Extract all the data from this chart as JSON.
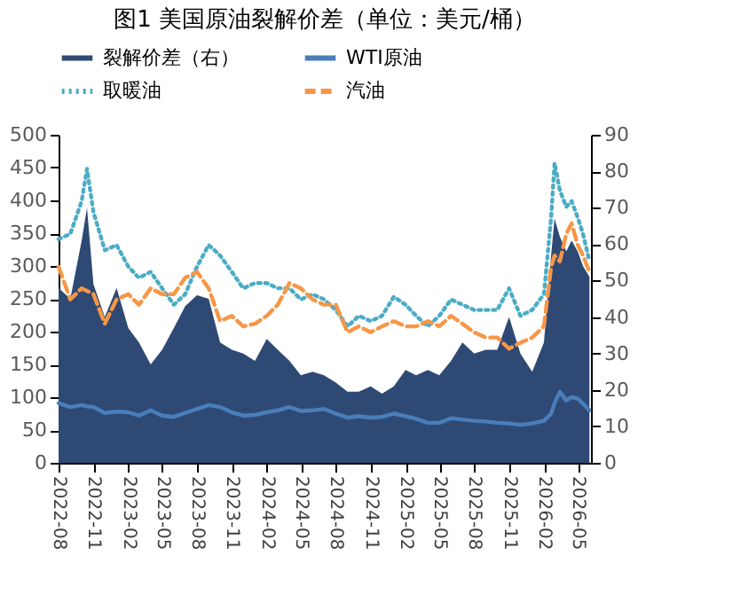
{
  "chart_data": {
    "type": "line",
    "title": "图1 美国原油裂解价差（单位：美元/桶）",
    "xlim": [
      "2022-08-01",
      "2026-06-05"
    ],
    "xticks": [
      "2022-08",
      "2022-11",
      "2023-02",
      "2023-05",
      "2023-08",
      "2023-11",
      "2024-02",
      "2024-05",
      "2024-08",
      "2024-11",
      "2025-02",
      "2025-05",
      "2025-08",
      "2025-11",
      "2026-02",
      "2026-05"
    ],
    "ylim": [
      0,
      500
    ],
    "yticks": [
      0,
      50,
      100,
      150,
      200,
      250,
      300,
      350,
      400,
      450,
      500
    ],
    "y2lim": [
      0,
      90
    ],
    "y2ticks": [
      0,
      10,
      20,
      30,
      40,
      50,
      60,
      70,
      80,
      90
    ],
    "grid": false,
    "legend": "top",
    "x": [
      "2022-08",
      "2022-09",
      "2022-10",
      "2022-10-15",
      "2022-11",
      "2022-12",
      "2023-01",
      "2023-02",
      "2023-03",
      "2023-04",
      "2023-05",
      "2023-06",
      "2023-07",
      "2023-08",
      "2023-09",
      "2023-10",
      "2023-11",
      "2023-12",
      "2024-01",
      "2024-02",
      "2024-03",
      "2024-04",
      "2024-05",
      "2024-06",
      "2024-07",
      "2024-08",
      "2024-09",
      "2024-10",
      "2024-11",
      "2024-12",
      "2025-01",
      "2025-02",
      "2025-03",
      "2025-04",
      "2025-05",
      "2025-06",
      "2025-07",
      "2025-08",
      "2025-09",
      "2025-10",
      "2025-11",
      "2025-12",
      "2026-01",
      "2026-02",
      "2026-02-20",
      "2026-03",
      "2026-03-15",
      "2026-04",
      "2026-04-15",
      "2026-05",
      "2026-05-15",
      "2026-06"
    ],
    "series": [
      {
        "name": "裂解价差（右）",
        "type": "area",
        "axis": "y2",
        "color": "#2e4a74",
        "values": [
          48,
          45,
          61,
          70,
          49,
          40,
          48,
          37,
          33,
          27,
          31,
          37,
          43,
          46,
          45,
          33,
          31,
          30,
          28,
          34,
          31,
          28,
          24,
          25,
          24,
          22,
          19.5,
          19.5,
          21,
          19,
          21,
          25.5,
          24,
          25.5,
          24,
          28,
          33,
          30,
          31,
          31,
          40,
          30,
          25,
          33,
          57,
          67,
          62,
          58,
          61,
          58,
          54,
          51
        ]
      },
      {
        "name": "WTI原油",
        "line_style": "solid",
        "color": "#4a7ebb",
        "values": [
          91,
          85,
          88,
          86,
          85,
          76,
          78,
          77,
          72,
          80,
          72,
          70,
          76,
          82,
          88,
          85,
          77,
          72,
          73,
          77,
          80,
          85,
          79,
          80,
          82,
          75,
          69,
          71,
          69,
          70,
          75,
          71,
          67,
          61,
          61,
          68,
          66,
          64,
          63,
          61,
          60,
          58,
          60,
          64,
          75,
          91,
          108,
          95,
          100,
          98,
          90,
          80
        ]
      },
      {
        "name": "取暖油",
        "line_style": "dotted",
        "color": "#4bacc6",
        "values": [
          341,
          349,
          399,
          448,
          382,
          324,
          332,
          299,
          282,
          291,
          266,
          241,
          257,
          299,
          332,
          316,
          291,
          266,
          274,
          274,
          266,
          266,
          249,
          257,
          249,
          233,
          208,
          224,
          216,
          224,
          253,
          241,
          224,
          208,
          224,
          249,
          241,
          233,
          233,
          233,
          266,
          224,
          233,
          257,
          374,
          457,
          415,
          390,
          399,
          374,
          349,
          307
        ]
      },
      {
        "name": "汽油",
        "line_style": "dashed",
        "color": "#f79646",
        "values": [
          299,
          249,
          266,
          262,
          257,
          212,
          249,
          257,
          241,
          266,
          257,
          257,
          282,
          291,
          266,
          216,
          224,
          208,
          212,
          224,
          241,
          274,
          266,
          249,
          241,
          241,
          199,
          208,
          199,
          208,
          216,
          208,
          208,
          216,
          208,
          224,
          212,
          199,
          191,
          191,
          174,
          183,
          191,
          208,
          299,
          316,
          307,
          349,
          365,
          332,
          316,
          291
        ]
      }
    ]
  }
}
